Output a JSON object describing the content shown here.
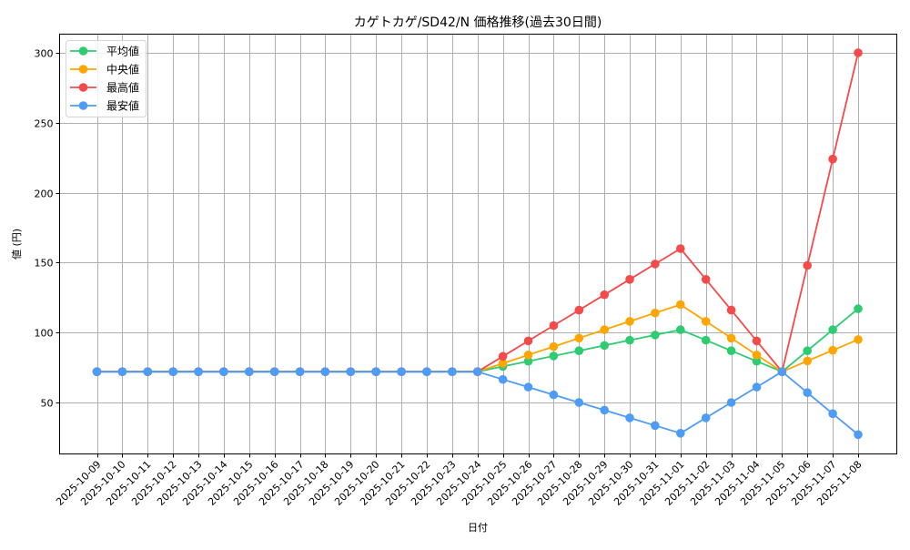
{
  "chart_data": {
    "type": "line",
    "title": "カゲトカゲ/SD42/N 価格推移(過去30日間)",
    "xlabel": "日付",
    "ylabel": "値 (円)",
    "ylim": [
      14,
      314
    ],
    "yticks": [
      50,
      100,
      150,
      200,
      250,
      300
    ],
    "grid": true,
    "legend_position": "upper left",
    "categories": [
      "2025-10-09",
      "2025-10-10",
      "2025-10-11",
      "2025-10-12",
      "2025-10-13",
      "2025-10-14",
      "2025-10-15",
      "2025-10-16",
      "2025-10-17",
      "2025-10-18",
      "2025-10-19",
      "2025-10-20",
      "2025-10-21",
      "2025-10-22",
      "2025-10-23",
      "2025-10-24",
      "2025-10-25",
      "2025-10-26",
      "2025-10-27",
      "2025-10-28",
      "2025-10-29",
      "2025-10-30",
      "2025-10-31",
      "2025-11-01",
      "2025-11-02",
      "2025-11-03",
      "2025-11-04",
      "2025-11-05",
      "2025-11-06",
      "2025-11-07",
      "2025-11-08"
    ],
    "series": [
      {
        "name": "平均値",
        "color": "#2ecc71",
        "values": [
          72,
          72,
          72,
          72,
          72,
          72,
          72,
          72,
          72,
          72,
          72,
          72,
          72,
          72,
          72,
          72,
          75.75,
          79.5,
          83.25,
          87,
          90.75,
          94.5,
          98.25,
          102,
          94.5,
          87,
          79.5,
          72,
          87,
          102,
          117
        ]
      },
      {
        "name": "中央値",
        "color": "#ffa500",
        "values": [
          72,
          72,
          72,
          72,
          72,
          72,
          72,
          72,
          72,
          72,
          72,
          72,
          72,
          72,
          72,
          72,
          78,
          84,
          90,
          96,
          102,
          108,
          114,
          120,
          108,
          96,
          84,
          72,
          79.7,
          87.3,
          95
        ]
      },
      {
        "name": "最高値",
        "color": "#f44a4a",
        "values": [
          72,
          72,
          72,
          72,
          72,
          72,
          72,
          72,
          72,
          72,
          72,
          72,
          72,
          72,
          72,
          72,
          83,
          94,
          105,
          116,
          127,
          138,
          149,
          160,
          138,
          116,
          94,
          72,
          148,
          224,
          300
        ]
      },
      {
        "name": "最安値",
        "color": "#4d9cf8",
        "values": [
          72,
          72,
          72,
          72,
          72,
          72,
          72,
          72,
          72,
          72,
          72,
          72,
          72,
          72,
          72,
          72,
          66.5,
          61,
          55.5,
          50,
          44.5,
          39,
          33.5,
          28,
          39,
          50,
          61,
          72,
          57,
          42,
          27
        ]
      }
    ]
  }
}
